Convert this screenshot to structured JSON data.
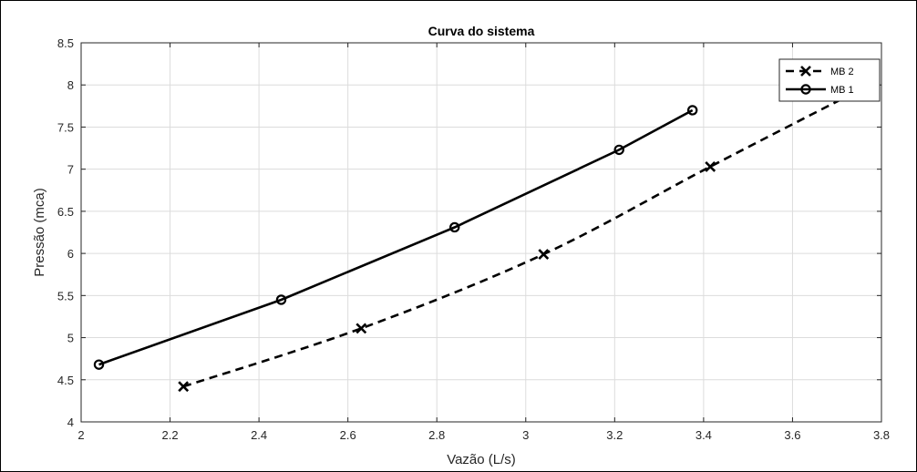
{
  "chart_data": {
    "type": "line",
    "title": "Curva do sistema",
    "xlabel": "Vazão (L/s)",
    "ylabel": "Pressão (mca)",
    "xlim": [
      2,
      3.8
    ],
    "ylim": [
      4,
      8.5
    ],
    "xticks": [
      2,
      2.2,
      2.4,
      2.6,
      2.8,
      3,
      3.2,
      3.4,
      3.6,
      3.8
    ],
    "xtick_labels": [
      "2",
      "2.2",
      "2.4",
      "2.6",
      "2.8",
      "3",
      "3.2",
      "3.4",
      "3.6",
      "3.8"
    ],
    "yticks": [
      4,
      4.5,
      5,
      5.5,
      6,
      6.5,
      7,
      7.5,
      8,
      8.5
    ],
    "ytick_labels": [
      "4",
      "4.5",
      "5",
      "5.5",
      "6",
      "6.5",
      "7",
      "7.5",
      "8",
      "8.5"
    ],
    "grid": true,
    "legend_position": "top-right",
    "series": [
      {
        "name": "MB 2",
        "marker": "x",
        "line_style": "dashed",
        "color": "#000000",
        "smooth": true,
        "x": [
          2.23,
          2.63,
          3.04,
          3.415,
          3.78
        ],
        "y": [
          4.42,
          5.11,
          5.99,
          7.03,
          8.02
        ]
      },
      {
        "name": "MB 1",
        "marker": "o",
        "line_style": "solid",
        "color": "#000000",
        "smooth": false,
        "x": [
          2.04,
          2.45,
          2.84,
          3.21,
          3.375
        ],
        "y": [
          4.68,
          5.45,
          6.31,
          7.23,
          7.7
        ]
      }
    ]
  }
}
